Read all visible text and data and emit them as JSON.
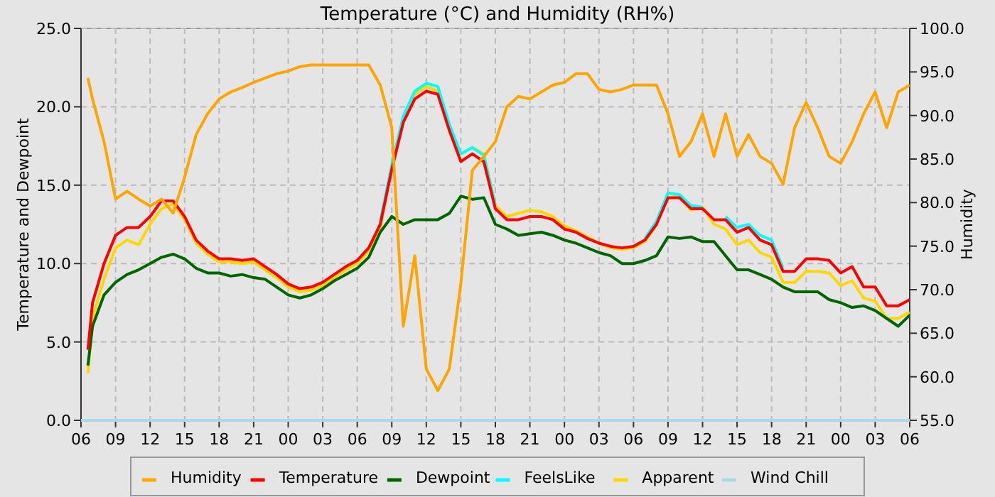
{
  "chart_data": {
    "type": "line",
    "title": "Temperature (°C) and Humidity (RH%)",
    "ylabel": "Temperature and Dewpoint",
    "y2label": "Humidity",
    "x": [
      "--01-01T06:36",
      "--01-01T07:00",
      "--01-01T08:00",
      "--01-01T09:00",
      "--01-01T10:00",
      "--01-01T11:00",
      "--01-01T12:00",
      "--01-01T13:00",
      "--01-01T14:00",
      "--01-01T15:00",
      "--01-01T16:00",
      "--01-01T17:00",
      "--01-01T18:00",
      "--01-01T19:00",
      "--01-01T20:00",
      "--01-01T21:00",
      "--01-01T22:00",
      "--01-01T23:00",
      "--01-02T00:00",
      "--01-02T01:00",
      "--01-02T02:00",
      "--01-02T03:00",
      "--01-02T04:00",
      "--01-02T05:00",
      "--01-02T06:00",
      "--01-02T07:00",
      "--01-02T08:00",
      "--01-02T09:00",
      "--01-02T10:00",
      "--01-02T11:00",
      "--01-02T12:00",
      "--01-02T13:00",
      "--01-02T14:00",
      "--01-02T15:00",
      "--01-02T16:00",
      "--01-02T17:00",
      "--01-02T18:00",
      "--01-02T19:00",
      "--01-02T20:00",
      "--01-02T21:00",
      "--01-02T22:00",
      "--01-02T23:00",
      "--01-03T00:00",
      "--01-03T01:00",
      "--01-03T02:00",
      "--01-03T03:00",
      "--01-03T04:00",
      "--01-03T05:00",
      "--01-03T06:00",
      "--01-03T07:00",
      "--01-03T08:00",
      "--01-03T09:00",
      "--01-03T10:00",
      "--01-03T11:00",
      "--01-03T12:00",
      "--01-03T13:00",
      "--01-03T14:00",
      "--01-03T15:00",
      "--01-03T16:00",
      "--01-03T17:00",
      "--01-03T18:00",
      "--01-03T19:00",
      "--01-03T20:00",
      "--01-03T21:00",
      "--01-03T22:00",
      "--01-03T23:00",
      "--01-04T00:00",
      "--01-04T01:00",
      "--01-04T02:00",
      "--01-04T03:00",
      "--01-04T04:00",
      "--01-04T05:00",
      "--01-04T06:00"
    ],
    "xlim": [
      "--01-01T06:00",
      "--01-04T06:00"
    ],
    "xticks": [
      {
        "value": "--01-01T06:00",
        "label": "06"
      },
      {
        "value": "--01-01T09:00",
        "label": "09"
      },
      {
        "value": "--01-01T12:00",
        "label": "12"
      },
      {
        "value": "--01-01T15:00",
        "label": "15"
      },
      {
        "value": "--01-01T18:00",
        "label": "18"
      },
      {
        "value": "--01-01T21:00",
        "label": "21"
      },
      {
        "value": "--01-02T00:00",
        "label": "00"
      },
      {
        "value": "--01-02T03:00",
        "label": "03"
      },
      {
        "value": "--01-02T06:00",
        "label": "06"
      },
      {
        "value": "--01-02T09:00",
        "label": "09"
      },
      {
        "value": "--01-02T12:00",
        "label": "12"
      },
      {
        "value": "--01-02T15:00",
        "label": "15"
      },
      {
        "value": "--01-02T18:00",
        "label": "18"
      },
      {
        "value": "--01-02T21:00",
        "label": "21"
      },
      {
        "value": "--01-03T00:00",
        "label": "00"
      },
      {
        "value": "--01-03T03:00",
        "label": "03"
      },
      {
        "value": "--01-03T06:00",
        "label": "06"
      },
      {
        "value": "--01-03T09:00",
        "label": "09"
      },
      {
        "value": "--01-03T12:00",
        "label": "12"
      },
      {
        "value": "--01-03T15:00",
        "label": "15"
      },
      {
        "value": "--01-03T18:00",
        "label": "18"
      },
      {
        "value": "--01-03T21:00",
        "label": "21"
      },
      {
        "value": "--01-04T00:00",
        "label": "00"
      },
      {
        "value": "--01-04T03:00",
        "label": "03"
      },
      {
        "value": "--01-04T06:00",
        "label": "06"
      }
    ],
    "ylim": [
      0,
      25
    ],
    "yticks": [
      {
        "value": 0,
        "label": "0.0"
      },
      {
        "value": 5,
        "label": "5.0"
      },
      {
        "value": 10,
        "label": "10.0"
      },
      {
        "value": 15,
        "label": "15.0"
      },
      {
        "value": 20,
        "label": "20.0"
      },
      {
        "value": 25,
        "label": "25.0"
      }
    ],
    "y2lim": [
      55,
      100
    ],
    "y2ticks": [
      {
        "value": 55,
        "label": "55.0"
      },
      {
        "value": 60,
        "label": "60.0"
      },
      {
        "value": 65,
        "label": "65.0"
      },
      {
        "value": 70,
        "label": "70.0"
      },
      {
        "value": 75,
        "label": "75.0"
      },
      {
        "value": 80,
        "label": "80.0"
      },
      {
        "value": 85,
        "label": "85.0"
      },
      {
        "value": 90,
        "label": "90.0"
      },
      {
        "value": 95,
        "label": "95.0"
      },
      {
        "value": 100,
        "label": "100.0"
      }
    ],
    "grid": true,
    "legend": "bottom",
    "marker": "none",
    "line_style": "solid",
    "series": [
      {
        "name": "Humidity",
        "color": "#ffa500",
        "axis": "y2",
        "values": [
          94.3,
          91.9,
          87,
          80.4,
          81.3,
          80.4,
          79.6,
          80.4,
          78.8,
          82.9,
          87.8,
          90.2,
          91.9,
          92.7,
          93.2,
          93.8,
          94.3,
          94.8,
          95.1,
          95.6,
          95.8,
          95.8,
          95.8,
          95.8,
          95.8,
          95.8,
          93.5,
          88.6,
          65.8,
          73.9,
          60.9,
          58.4,
          60.9,
          70.7,
          83.7,
          85.3,
          87,
          91,
          92.2,
          91.9,
          92.7,
          93.5,
          93.8,
          94.8,
          94.8,
          93,
          92.7,
          93,
          93.5,
          93.5,
          93.5,
          90.2,
          85.3,
          87,
          90.2,
          85.3,
          90.2,
          85.3,
          87.8,
          85.3,
          84.5,
          82.1,
          88.6,
          91.5,
          88.6,
          85.3,
          84.5,
          87,
          90.2,
          92.7,
          88.6,
          92.7,
          93.5
        ]
      },
      {
        "name": "Temperature",
        "color": "#ff0000",
        "values": [
          4.5,
          7.5,
          10,
          11.8,
          12.3,
          12.3,
          13,
          14,
          14,
          13,
          11.5,
          10.8,
          10.3,
          10.3,
          10.2,
          10.3,
          9.8,
          9.3,
          8.7,
          8.4,
          8.5,
          8.8,
          9.3,
          9.8,
          10.2,
          11,
          12.5,
          16,
          19,
          20.5,
          21,
          20.8,
          18.5,
          16.5,
          17,
          16.5,
          13.5,
          12.8,
          12.8,
          13,
          13,
          12.8,
          12.2,
          12,
          11.6,
          11.3,
          11.1,
          11,
          11.1,
          11.5,
          12.5,
          14.2,
          14.2,
          13.5,
          13.5,
          12.8,
          12.8,
          12,
          12.3,
          11.5,
          11.2,
          9.5,
          9.5,
          10.3,
          10.3,
          10.2,
          9.4,
          9.8,
          8.5,
          8.5,
          7.3,
          7.3,
          7.7
        ]
      },
      {
        "name": "Dewpoint",
        "color": "#006400",
        "values": [
          3.5,
          6,
          8,
          8.8,
          9.3,
          9.6,
          10,
          10.4,
          10.6,
          10.3,
          9.7,
          9.4,
          9.4,
          9.2,
          9.3,
          9.1,
          9,
          8.5,
          8,
          7.8,
          8,
          8.4,
          8.9,
          9.3,
          9.7,
          10.4,
          12,
          13,
          12.5,
          12.8,
          12.8,
          12.8,
          13.2,
          14.3,
          14.1,
          14.2,
          12.5,
          12.2,
          11.8,
          11.9,
          12,
          11.8,
          11.5,
          11.3,
          11,
          10.7,
          10.5,
          10,
          10,
          10.2,
          10.5,
          11.7,
          11.6,
          11.7,
          11.4,
          11.4,
          10.5,
          9.6,
          9.6,
          9.3,
          9,
          8.5,
          8.2,
          8.2,
          8.2,
          7.7,
          7.5,
          7.2,
          7.3,
          7,
          6.5,
          6,
          6.7
        ]
      },
      {
        "name": "FeelsLike",
        "color": "#00ffff",
        "values": [
          null,
          null,
          null,
          null,
          null,
          null,
          null,
          null,
          null,
          null,
          null,
          null,
          null,
          null,
          null,
          null,
          null,
          null,
          null,
          null,
          null,
          null,
          null,
          null,
          null,
          null,
          12.7,
          16.3,
          19.4,
          21,
          21.5,
          21.3,
          18.9,
          17,
          17.4,
          16.9,
          13.7,
          null,
          null,
          null,
          null,
          null,
          null,
          null,
          null,
          null,
          null,
          null,
          null,
          11.6,
          12.7,
          14.5,
          14.4,
          13.7,
          13.6,
          null,
          13,
          12.3,
          12.5,
          11.8,
          11.5,
          9.7,
          null,
          null,
          null,
          null,
          null,
          null,
          null,
          null,
          null,
          null,
          null
        ]
      },
      {
        "name": "Apparent",
        "color": "#ffd700",
        "values": [
          3,
          6.5,
          9,
          11,
          11.5,
          11.2,
          12.5,
          13.5,
          13.8,
          12.8,
          11.3,
          10.6,
          10.1,
          10.1,
          10,
          10.1,
          9.6,
          9.1,
          8.5,
          8.2,
          8.3,
          8.6,
          9.1,
          9.6,
          10,
          10.8,
          12.3,
          16.2,
          19.3,
          20.8,
          21.3,
          21,
          18.8,
          17,
          17.4,
          17,
          13.7,
          13,
          13.2,
          13.4,
          13.3,
          13,
          12.4,
          12.1,
          11.7,
          11.3,
          11,
          10.9,
          11,
          11.4,
          12.5,
          14.5,
          14.3,
          13.4,
          13.6,
          12.5,
          12.2,
          11.2,
          11.5,
          10.7,
          10.4,
          8.8,
          8.8,
          9.5,
          9.5,
          9.4,
          8.6,
          8.9,
          7.8,
          7.6,
          6.5,
          6.5,
          6.9
        ]
      },
      {
        "name": "Wind Chill",
        "color": "#add8e6",
        "x": [
          "--01-01T06:00",
          "--01-04T06:00"
        ],
        "values": [
          0,
          0
        ]
      }
    ]
  }
}
